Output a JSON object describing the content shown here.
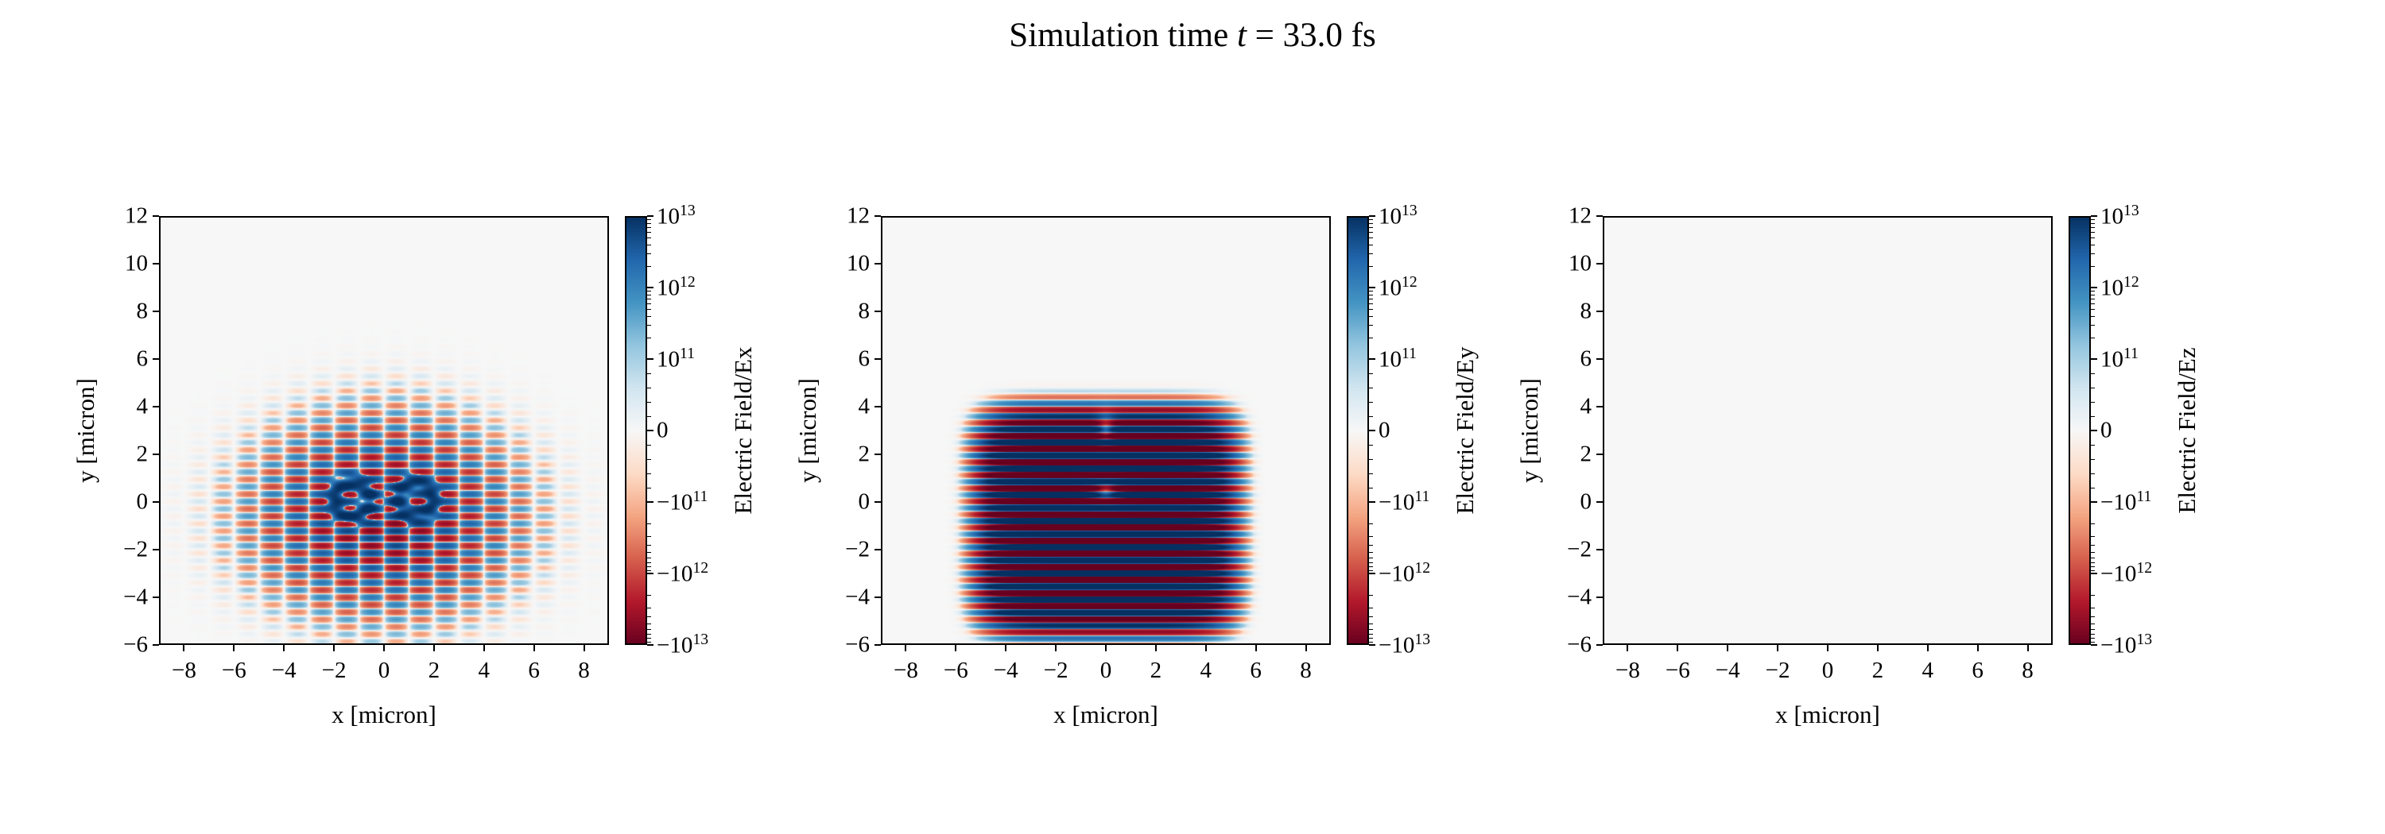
{
  "figure": {
    "title": {
      "prefix": "Simulation time ",
      "variable": "t",
      "equals": " = ",
      "value": "33.0",
      "unit": " fs"
    },
    "background_color": "#ffffff",
    "panel_background_color": "#f7f7f7"
  },
  "chart_data": [
    {
      "type": "heatmap",
      "panel": "Ex",
      "xlabel": "x [micron]",
      "ylabel": "y [micron]",
      "xlim": [
        -9,
        9
      ],
      "ylim": [
        -6,
        12
      ],
      "xticks": [
        -8,
        -6,
        -4,
        -2,
        0,
        2,
        4,
        6,
        8
      ],
      "yticks": [
        12,
        10,
        8,
        6,
        4,
        2,
        0,
        -2,
        -4,
        -6
      ],
      "grid": false,
      "colorbar": {
        "label": "Electric Field/Ex",
        "cmap": "RdBu",
        "norm": "symlog",
        "linthresh": 100000000000.0,
        "vmin": -10000000000000.0,
        "vmax": 10000000000000.0,
        "ticks": [
          {
            "value": 10000000000000.0,
            "base": "10",
            "exp": "13"
          },
          {
            "value": 1000000000000.0,
            "base": "10",
            "exp": "12"
          },
          {
            "value": 100000000000.0,
            "base": "10",
            "exp": "11"
          },
          {
            "value": 0,
            "base": "0",
            "exp": ""
          },
          {
            "value": -100000000000.0,
            "base": "−10",
            "exp": "11"
          },
          {
            "value": -1000000000000.0,
            "base": "−10",
            "exp": "12"
          },
          {
            "value": -10000000000000.0,
            "base": "−10",
            "exp": "13"
          }
        ]
      },
      "field": {
        "kind": "checkerboard",
        "description": "Transverse-gradient Ex of focused laser pulse: alternating red/blue checkerboard lobes, antisymmetric about x=0 with white nodal line, extent x about -5.5..5.5 and y about -4.5..3, two blue ring structures near x=+/-1.3, y=0",
        "amplitude": 7000000000000.0,
        "center_x": 0,
        "center_y": -0.6,
        "sigma_x": 2.4,
        "sigma_y": 1.9,
        "period_x": 2.0,
        "wavelength": 0.62,
        "rings": [
          {
            "x": -1.25,
            "y": 0.1,
            "radius": 0.7,
            "width": 0.2,
            "amplitude": 8000000000000.0
          },
          {
            "x": 1.25,
            "y": 0.1,
            "radius": 0.7,
            "width": 0.2,
            "amplitude": 8000000000000.0
          }
        ]
      }
    },
    {
      "type": "heatmap",
      "panel": "Ey",
      "xlabel": "x [micron]",
      "ylabel": "y [micron]",
      "xlim": [
        -9,
        9
      ],
      "ylim": [
        -6,
        12
      ],
      "xticks": [
        -8,
        -6,
        -4,
        -2,
        0,
        2,
        4,
        6,
        8
      ],
      "yticks": [
        12,
        10,
        8,
        6,
        4,
        2,
        0,
        -2,
        -4,
        -6
      ],
      "grid": false,
      "colorbar": {
        "label": "Electric Field/Ey",
        "cmap": "RdBu",
        "norm": "symlog",
        "linthresh": 100000000000.0,
        "vmin": -10000000000000.0,
        "vmax": 10000000000000.0,
        "ticks": [
          {
            "value": 10000000000000.0,
            "base": "10",
            "exp": "13"
          },
          {
            "value": 1000000000000.0,
            "base": "10",
            "exp": "12"
          },
          {
            "value": 100000000000.0,
            "base": "10",
            "exp": "11"
          },
          {
            "value": 0,
            "base": "0",
            "exp": ""
          },
          {
            "value": -100000000000.0,
            "base": "−10",
            "exp": "11"
          },
          {
            "value": -1000000000000.0,
            "base": "−10",
            "exp": "12"
          },
          {
            "value": -10000000000000.0,
            "base": "−10",
            "exp": "13"
          }
        ]
      },
      "field": {
        "kind": "stripes",
        "description": "Main laser field Ey: strong saturated horizontal red/blue fringes, extent x about -5.5..5.5 and y about -5..3.5, pale plasma spot near origin and small notch at top centre",
        "amplitude": 60000000000000.0,
        "center_x": 0,
        "center_y": -0.8,
        "half_width_x": 4.3,
        "half_width_y": 4.0,
        "edge_power": 6,
        "wavelength": 0.55,
        "damp_spots": [
          {
            "x": 0,
            "y": 0.45,
            "rx": 0.6,
            "ry": 0.5,
            "strength": 0.97
          },
          {
            "x": 0,
            "y": 3.1,
            "rx": 0.3,
            "ry": 0.6,
            "strength": 0.9
          }
        ]
      }
    },
    {
      "type": "heatmap",
      "panel": "Ez",
      "xlabel": "x [micron]",
      "ylabel": "y [micron]",
      "xlim": [
        -9,
        9
      ],
      "ylim": [
        -6,
        12
      ],
      "xticks": [
        -8,
        -6,
        -4,
        -2,
        0,
        2,
        4,
        6,
        8
      ],
      "yticks": [
        12,
        10,
        8,
        6,
        4,
        2,
        0,
        -2,
        -4,
        -6
      ],
      "grid": false,
      "colorbar": {
        "label": "Electric Field/Ez",
        "cmap": "RdBu",
        "norm": "symlog",
        "linthresh": 100000000000.0,
        "vmin": -10000000000000.0,
        "vmax": 10000000000000.0,
        "ticks": [
          {
            "value": 10000000000000.0,
            "base": "10",
            "exp": "13"
          },
          {
            "value": 1000000000000.0,
            "base": "10",
            "exp": "12"
          },
          {
            "value": 100000000000.0,
            "base": "10",
            "exp": "11"
          },
          {
            "value": 0,
            "base": "0",
            "exp": ""
          },
          {
            "value": -100000000000.0,
            "base": "−10",
            "exp": "11"
          },
          {
            "value": -1000000000000.0,
            "base": "−10",
            "exp": "12"
          },
          {
            "value": -10000000000000.0,
            "base": "−10",
            "exp": "13"
          }
        ]
      },
      "field": {
        "kind": "zero",
        "description": "Ez component is zero everywhere; panel shows uniform near-white background"
      }
    }
  ]
}
